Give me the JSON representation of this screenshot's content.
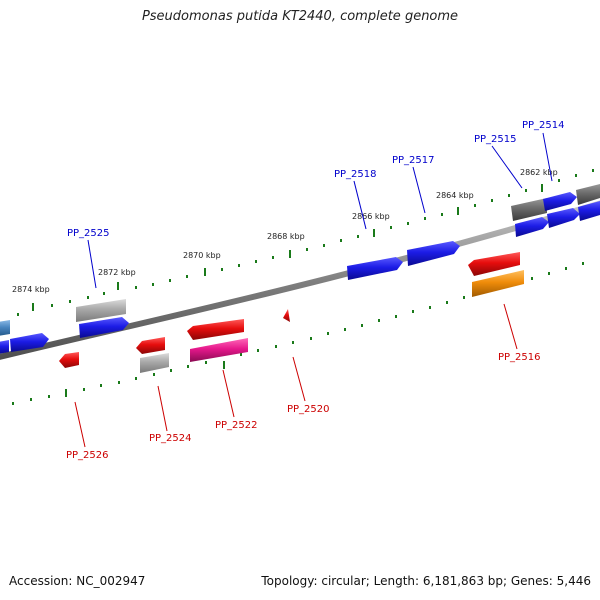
{
  "title": "Pseudomonas putida KT2440, complete genome",
  "footer": {
    "accession": "Accession: NC_002947",
    "summary": "Topology: circular; Length: 6,181,863 bp; Genes: 5,446"
  },
  "colors": {
    "forward_label": "#0000cc",
    "reverse_label": "#cc0000",
    "backbone": "#808080",
    "tick": "#1a7a1a"
  },
  "tick_labels": [
    {
      "id": "2862",
      "text": "2862 kbp"
    },
    {
      "id": "2864",
      "text": "2864 kbp"
    },
    {
      "id": "2866",
      "text": "2866 kbp"
    },
    {
      "id": "2868",
      "text": "2868 kbp"
    },
    {
      "id": "2870",
      "text": "2870 kbp"
    },
    {
      "id": "2872",
      "text": "2872 kbp"
    },
    {
      "id": "2874",
      "text": "2874 kbp"
    }
  ],
  "gene_labels": [
    {
      "id": "pp2514",
      "text": "PP_2514",
      "strand": "forward"
    },
    {
      "id": "pp2515",
      "text": "PP_2515",
      "strand": "forward"
    },
    {
      "id": "pp2517",
      "text": "PP_2517",
      "strand": "forward"
    },
    {
      "id": "pp2518",
      "text": "PP_2518",
      "strand": "forward"
    },
    {
      "id": "pp2525",
      "text": "PP_2525",
      "strand": "forward"
    },
    {
      "id": "pp2516",
      "text": "PP_2516",
      "strand": "reverse"
    },
    {
      "id": "pp2520",
      "text": "PP_2520",
      "strand": "reverse"
    },
    {
      "id": "pp2522",
      "text": "PP_2522",
      "strand": "reverse"
    },
    {
      "id": "pp2524",
      "text": "PP_2524",
      "strand": "reverse"
    },
    {
      "id": "pp2526",
      "text": "PP_2526",
      "strand": "reverse"
    }
  ],
  "feature_colors": {
    "blue": "#1c1ce6",
    "red": "#e60d0d",
    "gray": "#a8a8a8",
    "darkgray": "#6a6a6a",
    "pink": "#e6188c",
    "orange": "#f08c0a",
    "steel": "#4a86c0"
  }
}
